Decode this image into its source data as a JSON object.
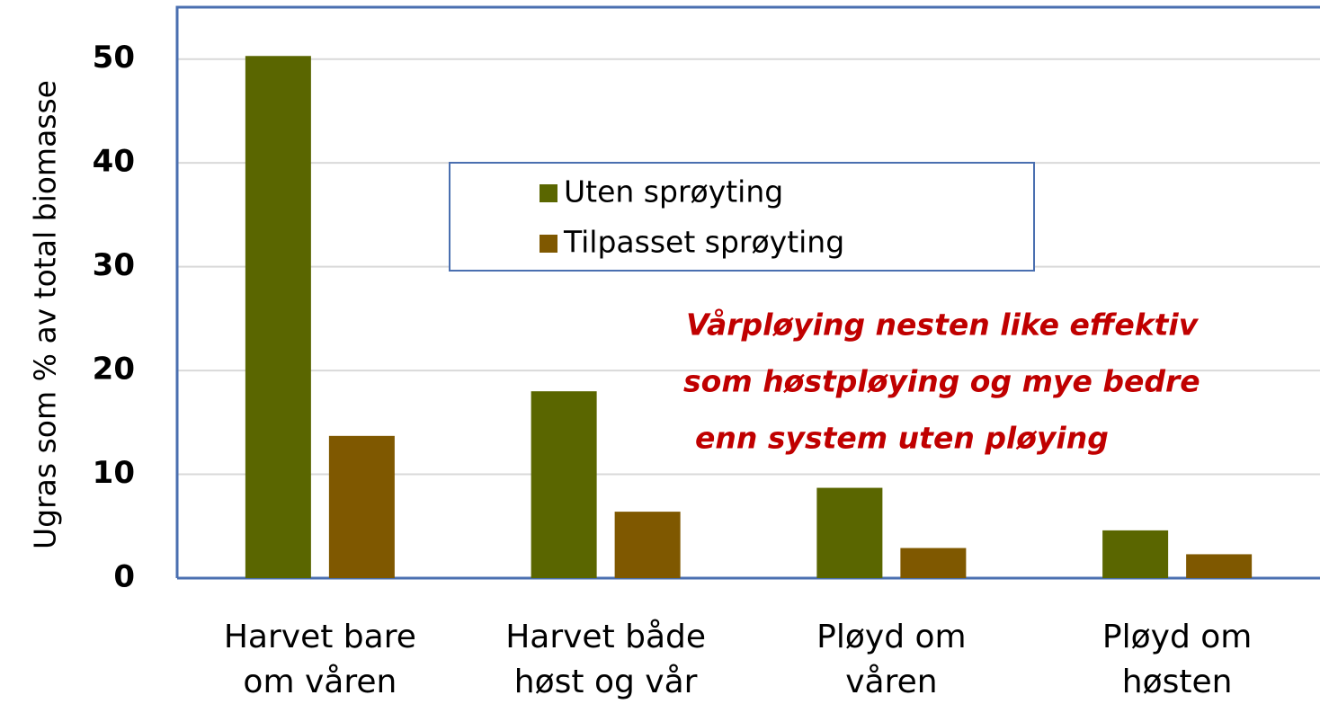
{
  "chart_data": {
    "type": "bar",
    "y_label": "Ugras som % av total biomasse",
    "categories": [
      [
        "Harvet bare",
        "om våren"
      ],
      [
        "Harvet både",
        "høst og vår"
      ],
      [
        "Pløyd om",
        "våren"
      ],
      [
        "Pløyd om",
        "høsten"
      ]
    ],
    "series": [
      {
        "name": "Uten sprøyting",
        "color": "#5a6600",
        "values": [
          50.3,
          18.0,
          8.7,
          4.6
        ]
      },
      {
        "name": "Tilpasset sprøyting",
        "color": "#7f5800",
        "values": [
          13.7,
          6.4,
          2.9,
          2.3
        ]
      }
    ],
    "ylim": [
      0,
      55
    ],
    "yticks": [
      0,
      10,
      20,
      30,
      40,
      50
    ],
    "grid": true,
    "annotation": [
      "Vårpløying nesten like effektiv",
      "som høstpløying og mye bedre",
      "enn system uten pløying"
    ]
  }
}
